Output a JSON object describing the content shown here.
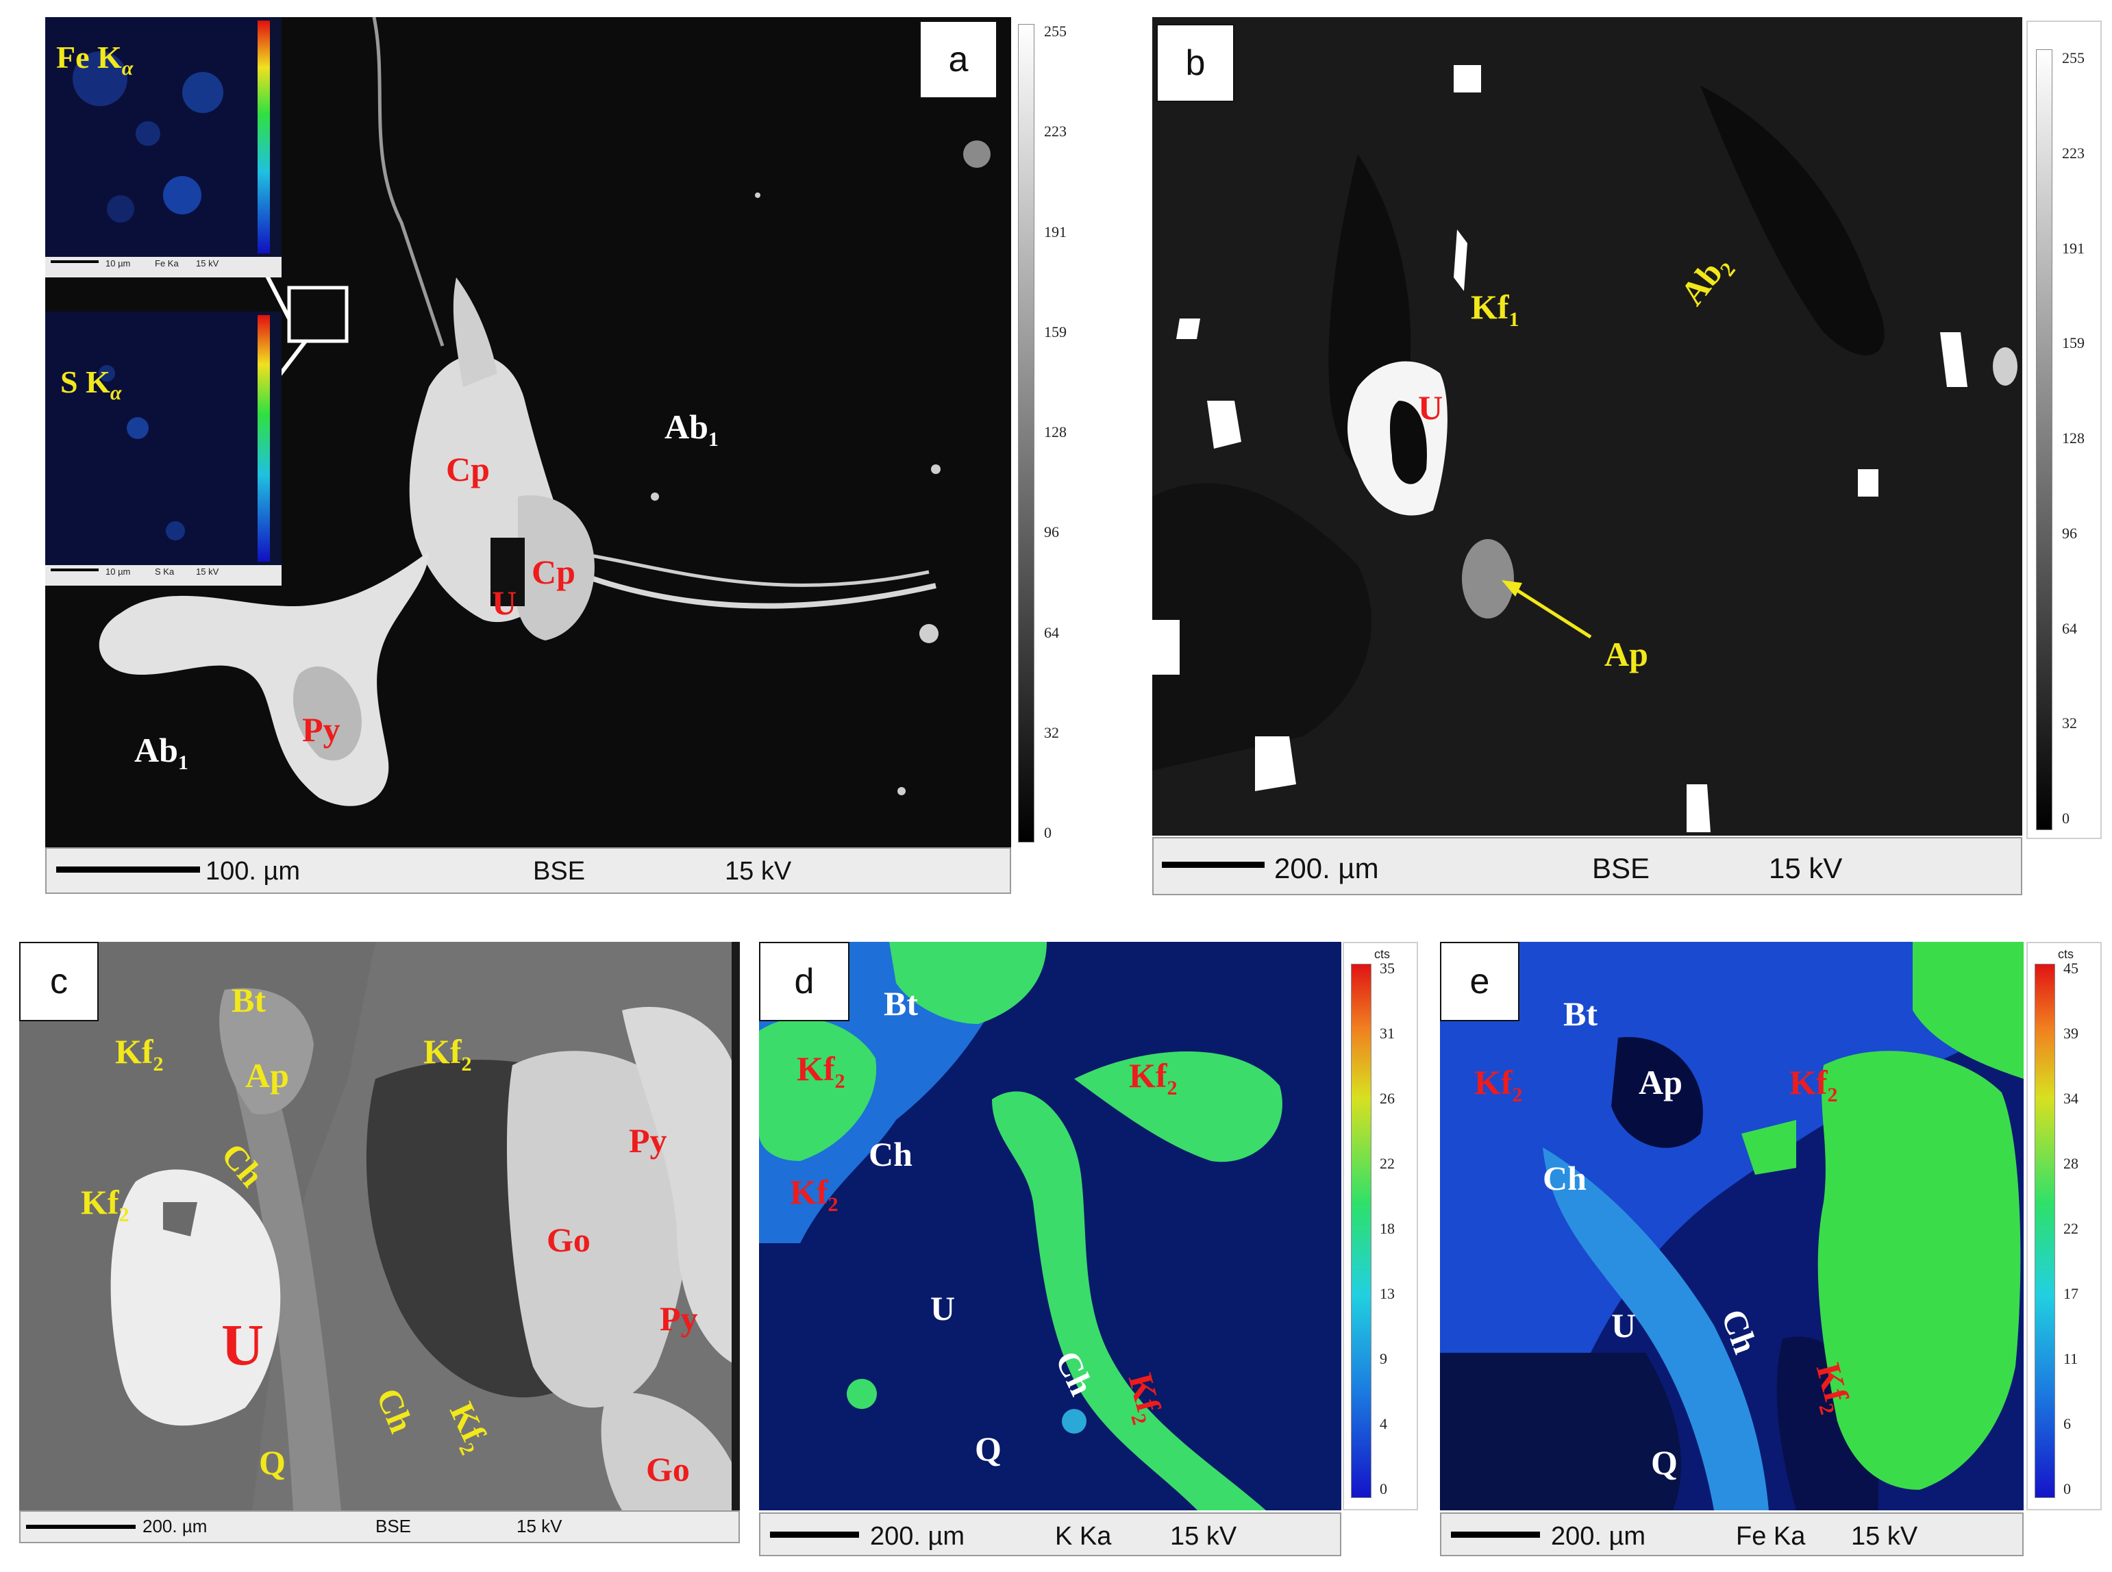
{
  "panels": {
    "a": {
      "label": "a",
      "labels": {
        "ab1_right": "Ab",
        "ab1_left": "Ab",
        "cp_top": "Cp",
        "cp_right": "Cp",
        "u": "U",
        "py": "Py"
      },
      "subs": {
        "ab1": "1"
      },
      "scalebar": {
        "length": "100. µm",
        "mode": "BSE",
        "voltage": "15 kV"
      },
      "colorbar": [
        "255",
        "223",
        "191",
        "159",
        "128",
        "96",
        "64",
        "32",
        "0"
      ],
      "inset_fe": {
        "title": "Fe K",
        "sub": "α",
        "scale": "10 µm",
        "element": "Fe Ka",
        "voltage": "15 kV"
      },
      "inset_s": {
        "title": "S K",
        "sub": "α",
        "scale": "10 µm",
        "element": "S Ka",
        "voltage": "15 kV"
      }
    },
    "b": {
      "label": "b",
      "labels": {
        "kf1": "Kf",
        "ab2": "Ab",
        "u": "U",
        "ap": "Ap"
      },
      "subs": {
        "kf1": "1",
        "ab2": "2"
      },
      "scalebar": {
        "length": "200. µm",
        "mode": "BSE",
        "voltage": "15 kV"
      },
      "colorbar": [
        "255",
        "223",
        "191",
        "159",
        "128",
        "96",
        "64",
        "32",
        "0"
      ]
    },
    "c": {
      "label": "c",
      "labels": {
        "bt": "Bt",
        "ap": "Ap",
        "kf2_a": "Kf",
        "kf2_b": "Kf",
        "kf2_c": "Kf",
        "kf2_d": "Kf",
        "ch_a": "Ch",
        "ch_b": "Ch",
        "u": "U",
        "q": "Q",
        "py_a": "Py",
        "py_b": "Py",
        "go_a": "Go",
        "go_b": "Go"
      },
      "subs": {
        "kf2": "2"
      },
      "scalebar": {
        "length": "200. µm",
        "mode": "BSE",
        "voltage": "15 kV"
      }
    },
    "d": {
      "label": "d",
      "labels": {
        "bt": "Bt",
        "kf2_a": "Kf",
        "kf2_b": "Kf",
        "kf2_c": "Kf",
        "kf2_d": "Kf",
        "ch_a": "Ch",
        "ch_b": "Ch",
        "u": "U",
        "q": "Q"
      },
      "subs": {
        "kf2": "2"
      },
      "scalebar": {
        "length": "200. µm",
        "mode": "K Ka",
        "voltage": "15 kV"
      },
      "colorbar_title": "cts",
      "colorbar": [
        "35",
        "31",
        "26",
        "22",
        "18",
        "13",
        "9",
        "4",
        "0"
      ]
    },
    "e": {
      "label": "e",
      "labels": {
        "bt": "Bt",
        "ap": "Ap",
        "kf2_a": "Kf",
        "kf2_b": "Kf",
        "kf2_c": "Kf",
        "ch_a": "Ch",
        "ch_b": "Ch",
        "u": "U",
        "q": "Q"
      },
      "subs": {
        "kf2": "2"
      },
      "scalebar": {
        "length": "200. µm",
        "mode": "Fe Ka",
        "voltage": "15 kV"
      },
      "colorbar_title": "cts",
      "colorbar": [
        "45",
        "39",
        "34",
        "28",
        "22",
        "17",
        "11",
        "6",
        "0"
      ]
    }
  },
  "colors": {
    "mineral_red": "#ee1c1c",
    "mineral_yellow": "#f2e81a",
    "mineral_white": "#ffffff",
    "map_low": "#0a1a8c",
    "map_high": "#2ee06a"
  }
}
